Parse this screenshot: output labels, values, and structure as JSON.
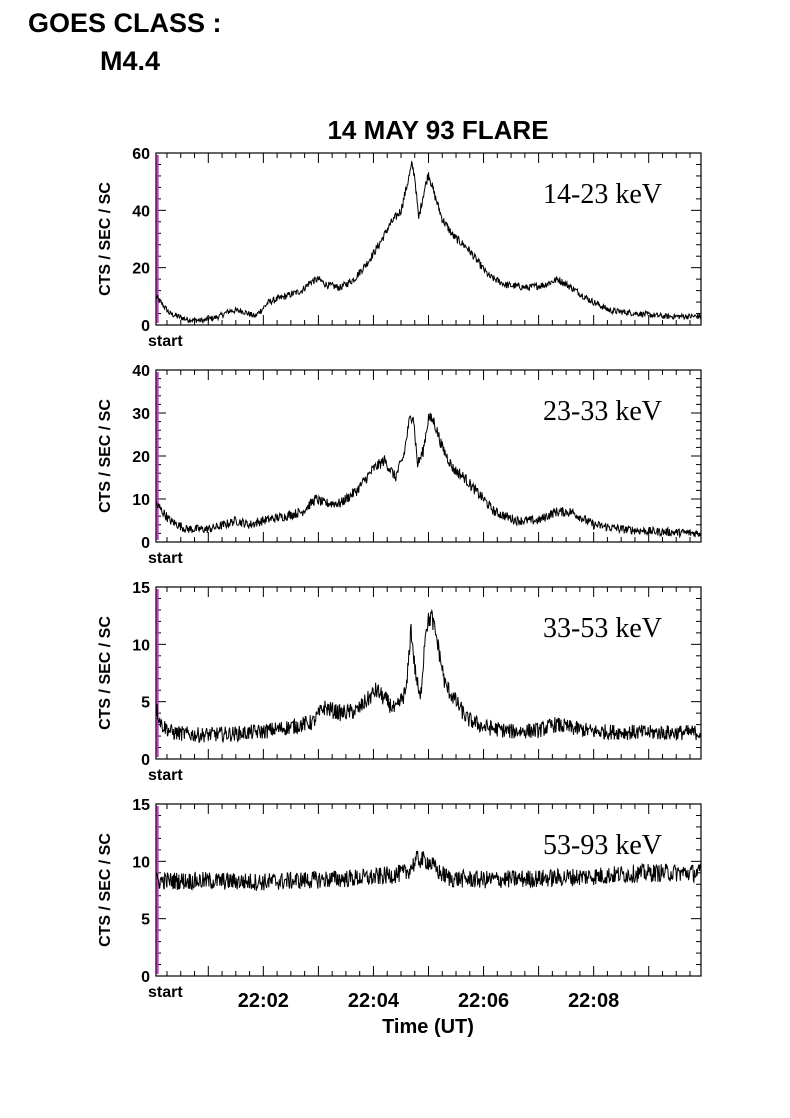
{
  "header": {
    "goes_label": "GOES CLASS :",
    "goes_value": "M4.4"
  },
  "chart_data": {
    "type": "line",
    "title": "14 MAY 93 FLARE",
    "xlabel": "Time (UT)",
    "x_tick_labels": [
      "22:02",
      "22:04",
      "22:06",
      "22:08"
    ],
    "x_unit": "minutes after 22:00 UT",
    "xlim": [
      0.05,
      9.95
    ],
    "start_marker_label": "start",
    "start_marker_x": 0.08,
    "colors": {
      "trace": "#000000",
      "start_marker": "#cc33cc"
    },
    "panels": [
      {
        "name": "14-23 keV",
        "ylabel": "CTS / SEC / SC",
        "ylim": [
          0,
          60
        ],
        "yticks": [
          0,
          20,
          40,
          60
        ],
        "noise": 0.8,
        "x": [
          0.05,
          0.3,
          0.6,
          0.9,
          1.2,
          1.4,
          1.6,
          1.85,
          2.1,
          2.4,
          2.7,
          2.85,
          3.0,
          3.15,
          3.4,
          3.65,
          3.9,
          4.1,
          4.3,
          4.5,
          4.6,
          4.7,
          4.75,
          4.82,
          4.9,
          5.0,
          5.1,
          5.25,
          5.45,
          5.7,
          5.9,
          6.1,
          6.4,
          6.8,
          7.1,
          7.35,
          7.6,
          7.9,
          8.3,
          8.8,
          9.3,
          9.95
        ],
        "values": [
          10,
          4,
          2,
          1.5,
          3,
          5,
          5,
          3,
          8,
          10,
          12,
          15,
          16,
          14,
          13,
          16,
          22,
          28,
          35,
          40,
          48,
          56,
          52,
          37,
          45,
          53,
          46,
          37,
          31,
          27,
          22,
          17,
          14,
          13,
          14,
          16,
          13,
          9,
          5,
          4,
          3,
          3
        ]
      },
      {
        "name": "23-33 keV",
        "ylabel": "CTS / SEC / SC",
        "ylim": [
          0,
          40
        ],
        "yticks": [
          0,
          10,
          20,
          30,
          40
        ],
        "noise": 0.8,
        "x": [
          0.05,
          0.3,
          0.6,
          1.0,
          1.3,
          1.5,
          1.75,
          2.0,
          2.4,
          2.7,
          2.95,
          3.1,
          3.4,
          3.7,
          4.0,
          4.2,
          4.4,
          4.55,
          4.65,
          4.72,
          4.8,
          4.9,
          5.0,
          5.1,
          5.25,
          5.45,
          5.65,
          5.85,
          6.0,
          6.2,
          6.6,
          7.0,
          7.3,
          7.6,
          8.0,
          8.5,
          9.0,
          9.95
        ],
        "values": [
          9,
          5,
          3,
          3,
          4,
          5,
          4,
          5,
          6,
          7,
          10,
          9,
          9,
          12,
          17,
          19,
          15,
          20,
          28,
          30,
          18,
          21,
          29,
          28,
          22,
          17,
          15,
          12,
          10,
          7,
          5,
          5,
          7,
          7,
          4,
          3,
          2.5,
          2
        ]
      },
      {
        "name": "33-53 keV",
        "ylabel": "CTS / SEC / SC",
        "ylim": [
          0,
          15
        ],
        "yticks": [
          0,
          5,
          10,
          15
        ],
        "noise": 0.55,
        "x": [
          0.05,
          0.15,
          0.35,
          0.8,
          1.5,
          2.0,
          2.5,
          2.9,
          3.1,
          3.4,
          3.7,
          3.9,
          4.05,
          4.25,
          4.4,
          4.6,
          4.68,
          4.75,
          4.85,
          4.95,
          5.05,
          5.15,
          5.3,
          5.5,
          5.7,
          6.0,
          6.5,
          7.0,
          7.3,
          7.6,
          8.0,
          9.0,
          9.95
        ],
        "values": [
          4.5,
          3,
          2.3,
          2.1,
          2.2,
          2.4,
          2.8,
          3.2,
          4.5,
          4,
          4.2,
          5.2,
          6,
          5,
          4.2,
          6,
          11.5,
          8,
          5,
          11.5,
          12.5,
          10.5,
          6.5,
          5,
          3.5,
          2.8,
          2.4,
          2.5,
          3,
          2.7,
          2.4,
          2.3,
          2.3
        ]
      },
      {
        "name": "53-93 keV",
        "ylabel": "CTS / SEC / SC",
        "ylim": [
          0,
          15
        ],
        "yticks": [
          0,
          5,
          10,
          15
        ],
        "noise": 0.55,
        "x": [
          0.05,
          1.0,
          2.0,
          3.0,
          4.0,
          4.6,
          4.8,
          5.0,
          5.2,
          5.4,
          6.0,
          7.0,
          8.0,
          9.0,
          9.95
        ],
        "values": [
          8.3,
          8.3,
          8.2,
          8.4,
          8.6,
          9,
          10.2,
          10,
          9,
          8.5,
          8.4,
          8.5,
          8.7,
          9,
          9
        ]
      }
    ]
  }
}
